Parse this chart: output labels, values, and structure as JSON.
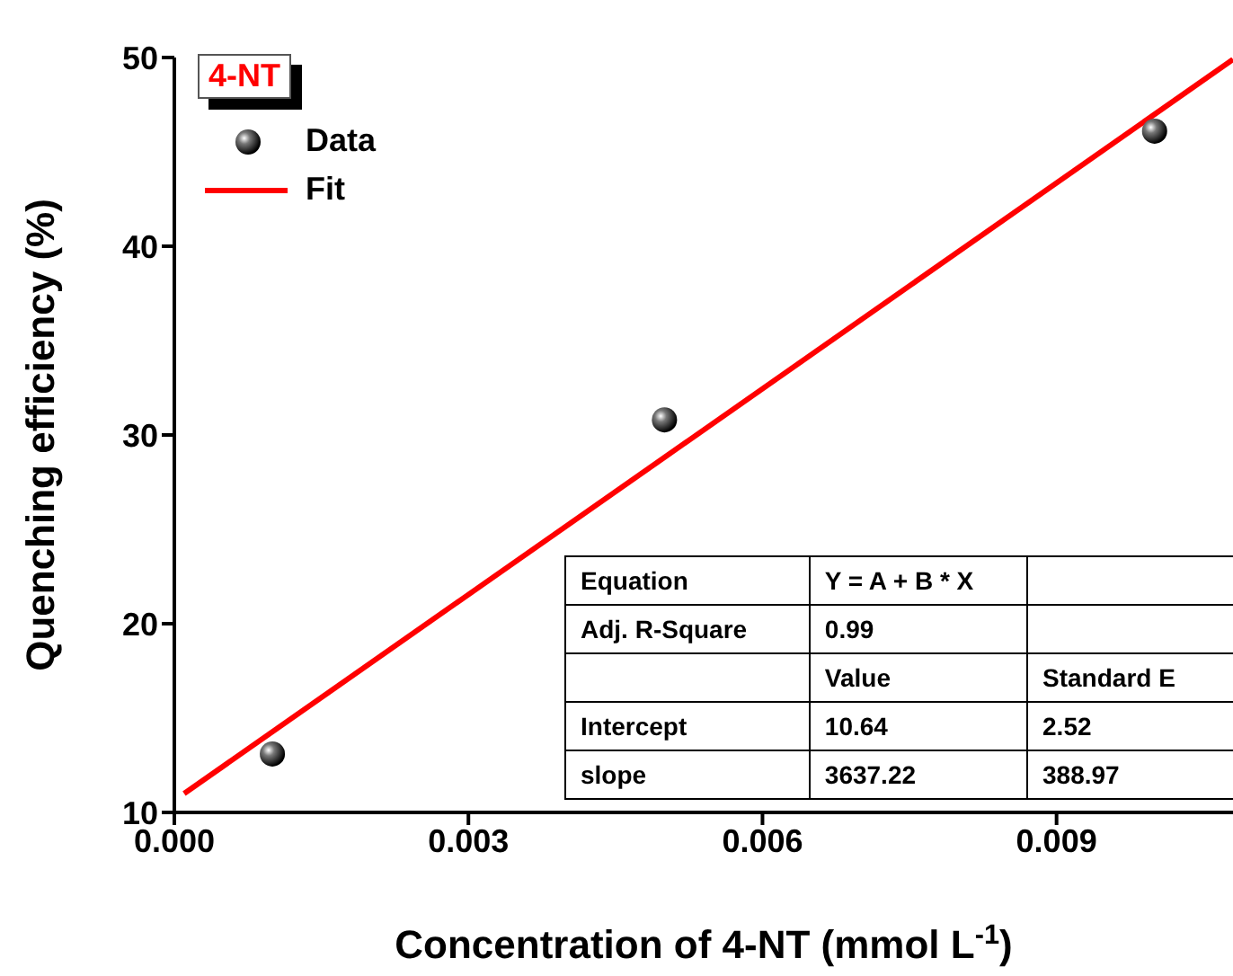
{
  "chart_data": {
    "type": "scatter",
    "xlabel": "Concentration of 4-NT (mmol L$^{-1}$)",
    "ylabel": "Quenching efficiency (%)",
    "legend_title": "4-NT",
    "legend": "top left",
    "xlim": [
      0,
      0.0108
    ],
    "xticks": [
      {
        "value": 0,
        "label": "0.000"
      },
      {
        "value": 0.003,
        "label": "0.003"
      },
      {
        "value": 0.006,
        "label": "0.006"
      },
      {
        "value": 0.009,
        "label": "0.009"
      }
    ],
    "ylim": [
      10,
      50
    ],
    "yticks": [
      10,
      20,
      30,
      40,
      50
    ],
    "series": [
      {
        "name": "Data",
        "color": "#000000",
        "marker": "circle",
        "x": [
          0.001,
          0.005,
          0.01
        ],
        "values": [
          13.1,
          30.8,
          46.1
        ]
      },
      {
        "name": "Fit",
        "type": "line",
        "color": "#ff0000",
        "line_style": "solid",
        "marker": "none",
        "x": [
          0.0001,
          0.0108
        ],
        "values": [
          11.0,
          49.9
        ]
      }
    ],
    "annotations": [
      "Equation",
      "Y = A + B * X",
      "Adj. R-Square",
      "0.99",
      "Value",
      "Standard E",
      "Intercept",
      "10.64",
      "2.52",
      "slope",
      "3637.22",
      "388.97"
    ]
  }
}
